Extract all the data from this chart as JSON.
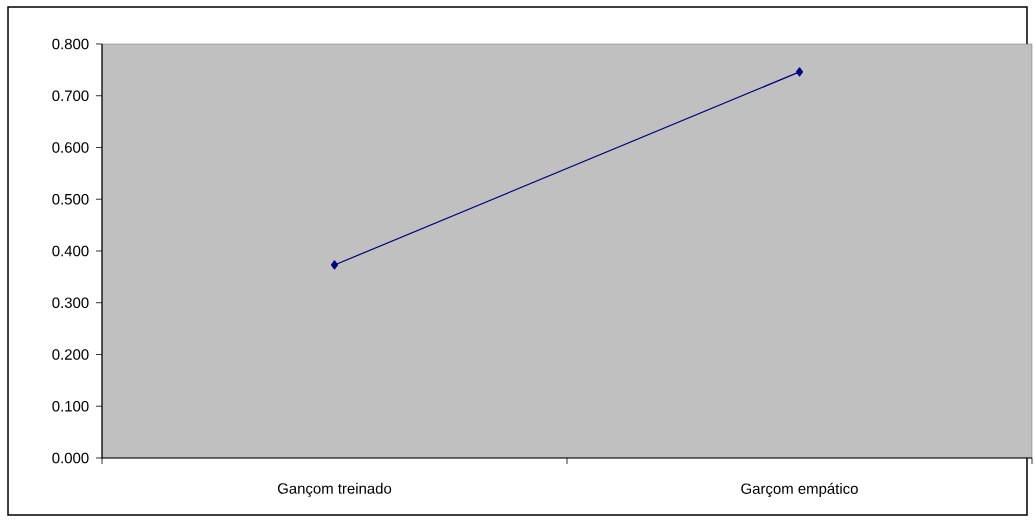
{
  "chart_data": {
    "type": "line",
    "categories": [
      "Gançom treinado",
      "Garçom empático"
    ],
    "values": [
      0.373,
      0.746
    ],
    "color": "#000080",
    "marker": "diamond",
    "ylim": [
      0,
      0.8
    ],
    "yticks": [
      {
        "value": 0,
        "label": "0.000"
      },
      {
        "value": 0.1,
        "label": "0.100"
      },
      {
        "value": 0.2,
        "label": "0.200"
      },
      {
        "value": 0.3,
        "label": "0.300"
      },
      {
        "value": 0.4,
        "label": "0.400"
      },
      {
        "value": 0.5,
        "label": "0.500"
      },
      {
        "value": 0.6,
        "label": "0.600"
      },
      {
        "value": 0.7,
        "label": "0.700"
      },
      {
        "value": 0.8,
        "label": "0.800"
      }
    ]
  }
}
